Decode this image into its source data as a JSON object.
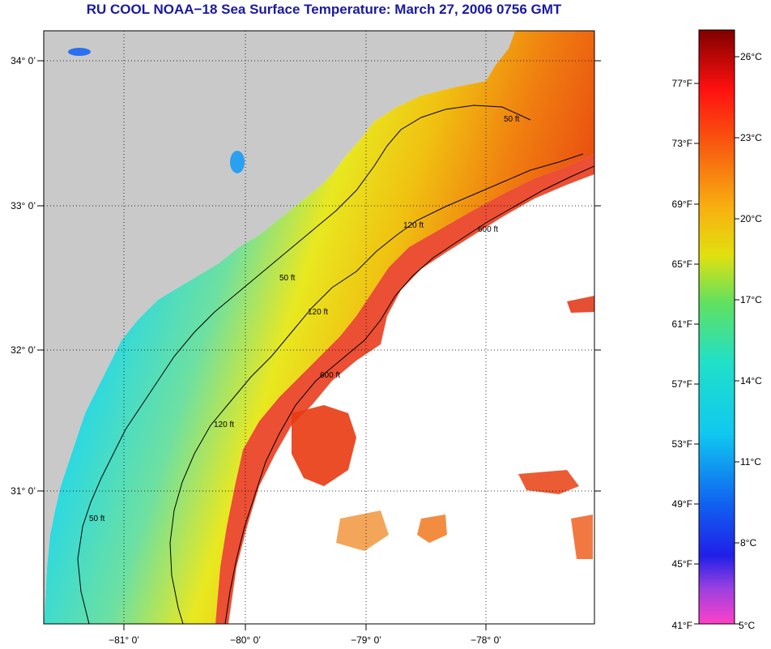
{
  "title": "RU COOL  NOAA−18  Sea Surface Temperature:  March 27, 2006 0756 GMT",
  "map": {
    "lat_labels": [
      "34° 0’",
      "33° 0’",
      "32° 0’",
      "31° 0’"
    ],
    "lon_labels": [
      "−81° 0’",
      "−80° 0’",
      "−79° 0’",
      "−78° 0’"
    ],
    "contours": [
      "50 ft",
      "120 ft",
      "600 ft"
    ],
    "colors": {
      "land": "#c9c9c9",
      "cloud": "#ffffff"
    }
  },
  "colorbar": {
    "celsius_labels": [
      "26°C",
      "23°C",
      "20°C",
      "17°C",
      "14°C",
      "11°C",
      "8°C",
      "5°C"
    ],
    "fahrenheit_labels": [
      "77°F",
      "73°F",
      "69°F",
      "65°F",
      "61°F",
      "57°F",
      "53°F",
      "49°F",
      "45°F",
      "41°F"
    ]
  }
}
